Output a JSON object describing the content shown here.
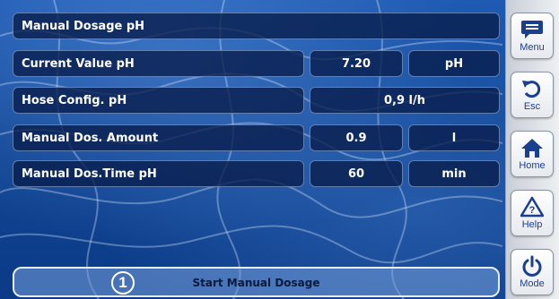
{
  "title": "Manual Dosage pH",
  "rows": [
    {
      "label": "Current Value pH",
      "value": "7.20",
      "unit": "pH"
    },
    {
      "label": "Hose Config. pH",
      "value": "0,9 l/h"
    },
    {
      "label": "Manual Dos. Amount",
      "value": "0.9",
      "unit": "l"
    },
    {
      "label": "Manual Dos.Time pH",
      "value": "60",
      "unit": "min"
    }
  ],
  "sidebar": {
    "menu": {
      "label": "Menu",
      "icon": "menu-icon"
    },
    "esc": {
      "label": "Esc",
      "icon": "undo-icon"
    },
    "home": {
      "label": "Home",
      "icon": "home-icon"
    },
    "help": {
      "label": "Help",
      "icon": "help-warning-icon"
    },
    "mode": {
      "label": "Mode",
      "icon": "power-icon"
    }
  },
  "start": {
    "badge": "1",
    "label": "Start Manual Dosage"
  },
  "colors": {
    "accent": "#1b3f8f",
    "panel": "#081c4a"
  }
}
